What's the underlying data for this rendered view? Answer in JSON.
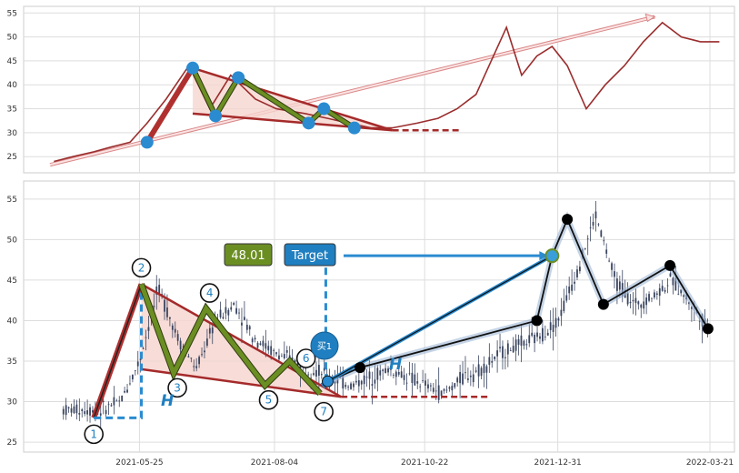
{
  "chart_data": [
    {
      "type": "line",
      "title": "",
      "ylim": [
        22,
        56
      ],
      "yticks": [
        25,
        30,
        35,
        40,
        45,
        50,
        55
      ],
      "grid": true,
      "colors": {
        "price": "#9b2d2d",
        "pattern_fill": "#f6d6d0",
        "zigzag": "#6b8e23",
        "points": "#2a8bd0",
        "trend_arrow": "#e8a0a0"
      },
      "series": [
        {
          "x": [
            "2021-04-10",
            "2021-04-20",
            "2021-05-01",
            "2021-05-10",
            "2021-05-20",
            "2021-05-29",
            "2021-06-08",
            "2021-06-20",
            "2021-07-01",
            "2021-07-12",
            "2021-07-25",
            "2021-08-05",
            "2021-08-20",
            "2021-09-01",
            "2021-09-12",
            "2021-09-24",
            "2021-10-05",
            "2021-10-18",
            "2021-10-29",
            "2021-11-08",
            "2021-11-18",
            "2021-11-26",
            "2021-12-04",
            "2021-12-12",
            "2021-12-20",
            "2021-12-28",
            "2022-01-05",
            "2022-01-15",
            "2022-01-25",
            "2022-02-04",
            "2022-02-14",
            "2022-02-24",
            "2022-03-06",
            "2022-03-16",
            "2022-03-26"
          ],
          "y": [
            24,
            25,
            26,
            27,
            28,
            32,
            37,
            44,
            35,
            42,
            37,
            35,
            34,
            33,
            32,
            31,
            31,
            32,
            33,
            35,
            38,
            45,
            52,
            42,
            46,
            48,
            44,
            35,
            40,
            44,
            49,
            53,
            50,
            49,
            49
          ]
        }
      ],
      "pattern_points": [
        {
          "x": "2021-05-29",
          "y": 28
        },
        {
          "x": "2021-06-22",
          "y": 43.5
        },
        {
          "x": "2021-07-04",
          "y": 33.5
        },
        {
          "x": "2021-07-16",
          "y": 41.5
        },
        {
          "x": "2021-08-22",
          "y": 32
        },
        {
          "x": "2021-08-30",
          "y": 35
        },
        {
          "x": "2021-09-15",
          "y": 31
        }
      ]
    },
    {
      "type": "candlestick",
      "title": "",
      "ylim": [
        24,
        57
      ],
      "yticks": [
        25,
        30,
        35,
        40,
        45,
        50,
        55
      ],
      "x_ticks": [
        "2021-05-25",
        "2021-08-04",
        "2021-10-22",
        "2021-12-31",
        "2022-03-21"
      ],
      "grid": true,
      "colors": {
        "candles": "#3a4560",
        "pattern_fill": "#f6d6d0",
        "zigzag": "#6b8e23",
        "target_line": "#1f7fc0",
        "points": "#000000"
      },
      "series": [
        {
          "x": [
            "2021-04-15",
            "2021-04-25",
            "2021-05-05",
            "2021-05-15",
            "2021-05-25",
            "2021-06-04",
            "2021-06-14",
            "2021-06-24",
            "2021-07-04",
            "2021-07-14",
            "2021-07-24",
            "2021-08-04",
            "2021-08-14",
            "2021-08-24",
            "2021-09-03",
            "2021-09-13",
            "2021-09-23",
            "2021-10-03",
            "2021-10-13",
            "2021-10-22",
            "2021-11-01",
            "2021-11-11",
            "2021-11-21",
            "2021-12-01",
            "2021-12-11",
            "2021-12-21",
            "2021-12-31",
            "2022-01-10",
            "2022-01-20",
            "2022-01-30",
            "2022-02-09",
            "2022-02-19",
            "2022-03-01",
            "2022-03-11",
            "2022-03-21"
          ],
          "y": [
            29,
            29,
            29,
            30,
            35,
            44,
            38,
            34,
            40,
            42,
            38,
            36,
            35,
            34,
            33,
            32,
            33,
            34,
            33,
            32,
            31,
            33,
            34,
            36,
            37,
            38,
            40,
            46,
            53,
            45,
            42,
            43,
            45,
            42,
            39
          ]
        }
      ],
      "pattern_labels": [
        "1",
        "2",
        "3",
        "4",
        "5",
        "6",
        "7"
      ],
      "pattern_points": [
        {
          "x": "2021-05-01",
          "y": 28
        },
        {
          "x": "2021-05-26",
          "y": 44.5
        },
        {
          "x": "2021-06-12",
          "y": 33.5
        },
        {
          "x": "2021-06-29",
          "y": 41.5
        },
        {
          "x": "2021-07-30",
          "y": 32
        },
        {
          "x": "2021-08-12",
          "y": 35
        },
        {
          "x": "2021-08-28",
          "y": 31
        }
      ],
      "breakout_points": [
        {
          "x": "2021-09-01",
          "y": 32.5
        },
        {
          "x": "2021-09-18",
          "y": 34.2
        },
        {
          "x": "2021-12-20",
          "y": 40
        },
        {
          "x": "2021-12-28",
          "y": 48
        },
        {
          "x": "2022-01-05",
          "y": 52.5
        },
        {
          "x": "2022-01-24",
          "y": 42
        },
        {
          "x": "2022-02-28",
          "y": 46.8
        },
        {
          "x": "2022-03-20",
          "y": 39
        }
      ],
      "annotations": {
        "target_value": "48.01",
        "target_label": "Target",
        "buy_label": "买1",
        "height_label": "H"
      }
    }
  ]
}
